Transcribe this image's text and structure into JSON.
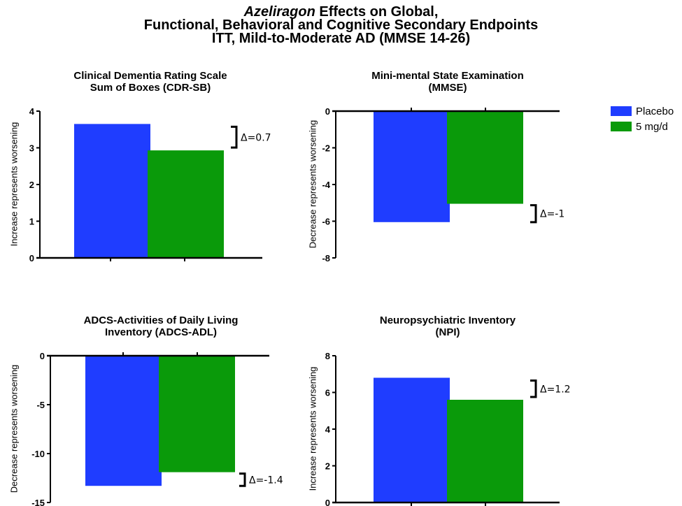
{
  "title": {
    "line1_italic": "Azeliragon",
    "line1_rest": " Effects on Global,",
    "line2": "Functional, Behavioral and Cognitive Secondary Endpoints",
    "line3": "ITT, Mild-to-Moderate AD (MMSE 14-26)"
  },
  "legend": [
    {
      "label": "Placebo",
      "color": "#1f3dff"
    },
    {
      "label": "5 mg/d",
      "color": "#0a9a0a"
    }
  ],
  "chart_data": [
    {
      "type": "bar",
      "title_line1": "Clinical Dementia Rating Scale",
      "title_line2": "Sum of Boxes (CDR-SB)",
      "ylabel": "Increase represents worsening",
      "series": [
        {
          "name": "Placebo",
          "values": [
            3.65
          ]
        },
        {
          "name": "5 mg/d",
          "values": [
            2.93
          ]
        }
      ],
      "ylim": [
        0,
        4
      ],
      "yticks": [
        "0",
        "1",
        "2",
        "3",
        "4"
      ],
      "delta_label": "Δ=0.7",
      "baseline": "bottom"
    },
    {
      "type": "bar",
      "title_line1": "Mini-mental State Examination",
      "title_line2": "(MMSE)",
      "ylabel": "Decrease represents worsening",
      "series": [
        {
          "name": "Placebo",
          "values": [
            -6.05
          ]
        },
        {
          "name": "5 mg/d",
          "values": [
            -5.05
          ]
        }
      ],
      "ylim": [
        -8,
        0
      ],
      "yticks": [
        "-8",
        "-6",
        "-4",
        "-2",
        "0"
      ],
      "delta_label": "Δ=-1",
      "baseline": "top"
    },
    {
      "type": "bar",
      "title_line1": "ADCS-Activities of Daily Living",
      "title_line2": "Inventory (ADCS-ADL)",
      "ylabel": "Decrease represents worsening",
      "series": [
        {
          "name": "Placebo",
          "values": [
            -13.3
          ]
        },
        {
          "name": "5 mg/d",
          "values": [
            -11.9
          ]
        }
      ],
      "ylim": [
        -15,
        0
      ],
      "yticks": [
        "-15",
        "-10",
        "-5",
        "0"
      ],
      "delta_label": "Δ=-1.4",
      "baseline": "top"
    },
    {
      "type": "bar",
      "title_line1": "Neuropsychiatric Inventory",
      "title_line2": "(NPI)",
      "ylabel": "Increase represents worsening",
      "series": [
        {
          "name": "Placebo",
          "values": [
            6.8
          ]
        },
        {
          "name": "5 mg/d",
          "values": [
            5.6
          ]
        }
      ],
      "ylim": [
        0,
        8
      ],
      "yticks": [
        "0",
        "2",
        "4",
        "6",
        "8"
      ],
      "delta_label": "Δ=1.2",
      "baseline": "bottom"
    }
  ]
}
